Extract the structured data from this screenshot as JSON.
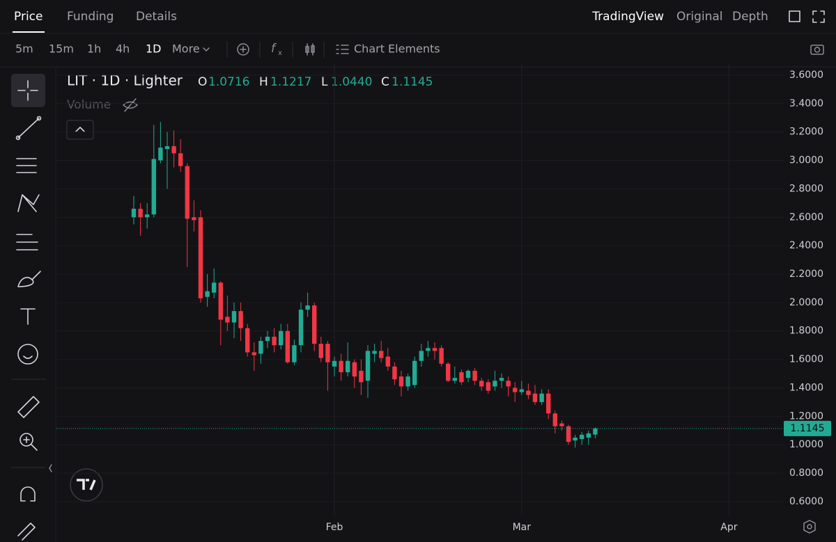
{
  "tabs": [
    "Price",
    "Funding",
    "Details"
  ],
  "views": [
    "TradingView",
    "Original",
    "Depth"
  ],
  "intervals": [
    "5m",
    "15m",
    "1h",
    "4h",
    "1D"
  ],
  "more": "More",
  "chart_elements": "Chart Elements",
  "legend": {
    "symbol": "LIT · 1D · Lighter",
    "o_label": "O",
    "o": "1.0716",
    "h_label": "H",
    "h": "1.1217",
    "l_label": "L",
    "l": "1.0440",
    "c_label": "C",
    "c": "1.1145",
    "volume": "Volume"
  },
  "last_price_label": "1.1145",
  "chart_data": {
    "type": "candlestick",
    "up_color": "#22ab94",
    "down_color": "#f23645",
    "grid": true,
    "categories": [
      null,
      null,
      null,
      null,
      null,
      null,
      null,
      null,
      null,
      null,
      null,
      null,
      null,
      null,
      null,
      null,
      null,
      null,
      null,
      null,
      null,
      null,
      null,
      null,
      null,
      null,
      null,
      null,
      null,
      null,
      "Feb",
      null,
      null,
      null,
      null,
      null,
      null,
      null,
      null,
      null,
      null,
      null,
      null,
      null,
      null,
      null,
      null,
      null,
      null,
      null,
      null,
      null,
      null,
      null,
      null,
      null,
      null,
      null,
      "Mar",
      null,
      null,
      null,
      null,
      null,
      null,
      null,
      null,
      null,
      null,
      null,
      null,
      null,
      null,
      null,
      null,
      null,
      null,
      null,
      null,
      null,
      null,
      null,
      null,
      null,
      null,
      null,
      null,
      null,
      null,
      "Apr"
    ],
    "open": [
      2.6,
      2.66,
      2.6,
      2.62,
      3.0,
      3.08,
      3.1,
      3.05,
      2.96,
      2.6,
      2.6,
      2.04,
      2.07,
      2.14,
      1.9,
      1.86,
      1.94,
      1.82,
      1.65,
      1.64,
      1.73,
      1.76,
      1.7,
      1.8,
      1.58,
      1.7,
      1.95,
      1.98,
      1.71,
      1.71,
      1.55,
      1.59,
      1.51,
      1.58,
      1.52,
      1.45,
      1.64,
      1.66,
      1.62,
      1.55,
      1.48,
      1.41,
      1.42,
      1.59,
      1.66,
      1.68,
      1.68,
      1.57,
      1.45,
      1.51,
      1.47,
      1.52,
      1.45,
      1.44,
      1.41,
      1.45,
      1.45,
      1.4,
      1.37,
      1.38,
      1.36,
      1.3,
      1.36,
      1.22,
      1.15,
      1.13,
      1.03,
      1.04,
      1.05,
      1.0716,
      null,
      null,
      null,
      null,
      null,
      null,
      null,
      null,
      null,
      null,
      null,
      null,
      null,
      null,
      null,
      null,
      null,
      null,
      null,
      null
    ],
    "high": [
      2.75,
      2.7,
      2.7,
      3.25,
      3.27,
      3.2,
      3.21,
      3.15,
      2.98,
      2.72,
      2.65,
      2.2,
      2.24,
      2.15,
      2.05,
      2.0,
      2.0,
      1.85,
      1.72,
      1.76,
      1.8,
      1.82,
      1.85,
      1.85,
      1.74,
      2.0,
      2.07,
      2.0,
      1.76,
      1.73,
      1.62,
      1.64,
      1.72,
      1.6,
      1.6,
      1.7,
      1.71,
      1.73,
      1.68,
      1.58,
      1.52,
      1.5,
      1.62,
      1.71,
      1.73,
      1.72,
      1.7,
      1.58,
      1.55,
      1.53,
      1.53,
      1.54,
      1.47,
      1.46,
      1.52,
      1.5,
      1.48,
      1.44,
      1.45,
      1.43,
      1.42,
      1.39,
      1.39,
      1.24,
      1.17,
      1.14,
      1.07,
      1.09,
      1.1,
      1.1217,
      null,
      null,
      null,
      null,
      null,
      null,
      null,
      null,
      null,
      null,
      null,
      null,
      null,
      null,
      null,
      null,
      null,
      null,
      null,
      null
    ],
    "low": [
      2.55,
      2.47,
      2.52,
      2.6,
      2.98,
      2.8,
      2.95,
      2.92,
      2.25,
      2.5,
      2.0,
      1.97,
      2.03,
      1.7,
      1.8,
      1.75,
      1.73,
      1.62,
      1.52,
      1.57,
      1.68,
      1.65,
      1.67,
      1.57,
      1.56,
      1.65,
      1.9,
      1.66,
      1.58,
      1.38,
      1.48,
      1.45,
      1.48,
      1.4,
      1.35,
      1.33,
      1.58,
      1.58,
      1.52,
      1.42,
      1.34,
      1.38,
      1.4,
      1.55,
      1.62,
      1.6,
      1.55,
      1.44,
      1.43,
      1.42,
      1.44,
      1.42,
      1.38,
      1.36,
      1.38,
      1.4,
      1.34,
      1.3,
      1.35,
      1.32,
      1.28,
      1.28,
      1.18,
      1.08,
      1.1,
      1.0,
      0.98,
      1.0,
      1.0,
      1.044,
      null,
      null,
      null,
      null,
      null,
      null,
      null,
      null,
      null,
      null,
      null,
      null,
      null,
      null,
      null,
      null,
      null,
      null,
      null,
      null
    ],
    "close": [
      2.66,
      2.6,
      2.62,
      3.01,
      3.09,
      3.1,
      3.05,
      2.96,
      2.59,
      2.58,
      2.03,
      2.08,
      2.14,
      1.88,
      1.86,
      1.94,
      1.82,
      1.65,
      1.63,
      1.73,
      1.76,
      1.7,
      1.8,
      1.58,
      1.7,
      1.95,
      1.98,
      1.71,
      1.61,
      1.58,
      1.59,
      1.51,
      1.59,
      1.48,
      1.44,
      1.66,
      1.66,
      1.61,
      1.55,
      1.46,
      1.41,
      1.48,
      1.59,
      1.66,
      1.68,
      1.66,
      1.57,
      1.45,
      1.47,
      1.44,
      1.52,
      1.45,
      1.41,
      1.38,
      1.45,
      1.47,
      1.41,
      1.37,
      1.39,
      1.35,
      1.3,
      1.36,
      1.22,
      1.13,
      1.13,
      1.02,
      1.05,
      1.07,
      1.08,
      1.1145,
      null,
      null,
      null,
      null,
      null,
      null,
      null,
      null,
      null,
      null,
      null,
      null,
      null,
      null,
      null,
      null,
      null,
      null,
      null,
      null
    ],
    "ylim": [
      0.497,
      3.678
    ],
    "yticks": [
      {
        "value": 0.6,
        "label": "0.6000"
      },
      {
        "value": 0.8,
        "label": "0.8000"
      },
      {
        "value": 1.0,
        "label": "1.0000"
      },
      {
        "value": 1.2,
        "label": "1.2000"
      },
      {
        "value": 1.4,
        "label": "1.4000"
      },
      {
        "value": 1.6,
        "label": "1.6000"
      },
      {
        "value": 1.8,
        "label": "1.8000"
      },
      {
        "value": 2.0,
        "label": "2.0000"
      },
      {
        "value": 2.2,
        "label": "2.2000"
      },
      {
        "value": 2.4,
        "label": "2.4000"
      },
      {
        "value": 2.6,
        "label": "2.6000"
      },
      {
        "value": 2.8,
        "label": "2.8000"
      },
      {
        "value": 3.0,
        "label": "3.0000"
      },
      {
        "value": 3.2,
        "label": "3.2000"
      },
      {
        "value": 3.4,
        "label": "3.4000"
      },
      {
        "value": 3.6,
        "label": "3.6000"
      }
    ]
  }
}
